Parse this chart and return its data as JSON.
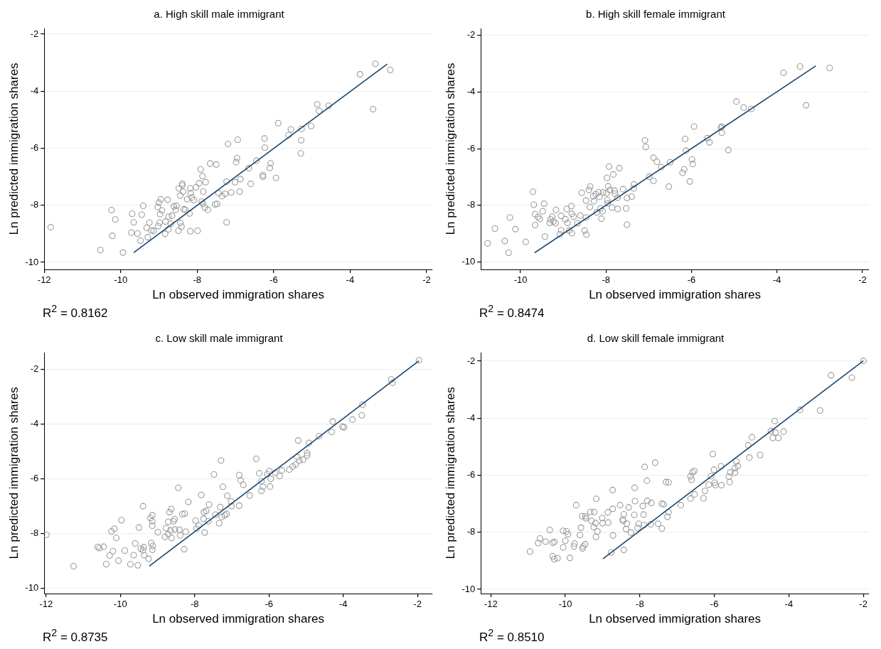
{
  "chart_data": [
    {
      "type": "scatter",
      "title": "a. High skill male immigrant",
      "xlabel": "Ln observed immigration shares",
      "ylabel": "Ln predicted immigration shares",
      "xlim": [
        -12,
        -1.85
      ],
      "ylim": [
        -10.25,
        -1.8
      ],
      "xticks": [
        -12,
        -10,
        -8,
        -6,
        -4,
        -2
      ],
      "yticks": [
        -10,
        -8,
        -6,
        -4,
        -2
      ],
      "grid": "y",
      "annotations": [
        "R$^{2}$ = 0.8162"
      ],
      "series": [
        {
          "marker": "circle",
          "color": "#999999",
          "x": [
            -11.83,
            -10.53,
            -10.24,
            -10.22,
            -10.14,
            -9.94,
            -9.72,
            -9.7,
            -9.66,
            -9.56,
            -9.48,
            -9.45,
            -9.41,
            -9.32,
            -9.29,
            -9.25,
            -9.2,
            -9.14,
            -9.02,
            -9.03,
            -9,
            -8.95,
            -8.97,
            -8.92,
            -8.98,
            -8.84,
            -8.77,
            -8.83,
            -8.75,
            -8.66,
            -8.75,
            -8.69,
            -8.61,
            -8.54,
            -8.56,
            -8.49,
            -8.48,
            -8.44,
            -8.44,
            -8.41,
            -8.39,
            -8.39,
            -8.37,
            -8.35,
            -8.31,
            -8.2,
            -8.18,
            -8.17,
            -8.26,
            -8.14,
            -8.09,
            -8.18,
            -7.99,
            -8.03,
            -7.95,
            -7.91,
            -7.86,
            -7.78,
            -7.84,
            -7.88,
            -7.85,
            -7.8,
            -7.72,
            -7.66,
            -7.5,
            -7.53,
            -7.48,
            -7.44,
            -7.35,
            -7.27,
            -7.23,
            -7.23,
            -7.19,
            -7.11,
            -7.01,
            -6.96,
            -6.98,
            -6.94,
            -6.87,
            -6.89,
            -6.65,
            -6.6,
            -6.45,
            -6.28,
            -6.28,
            -6.24,
            -6.23,
            -6.08,
            -6.1,
            -5.94,
            -5.88,
            -5.61,
            -5.55,
            -5.27,
            -5.28,
            -5.29,
            -5.02,
            -4.86,
            -4.81,
            -4.56,
            -3.74,
            -3.4,
            -3.34,
            -2.95
          ],
          "values": [
            -8.77,
            -9.57,
            -8.17,
            -9.07,
            -8.5,
            -9.66,
            -8.96,
            -8.3,
            -8.6,
            -8.99,
            -9.24,
            -8.33,
            -8.02,
            -8.79,
            -9.12,
            -8.61,
            -8.88,
            -8.9,
            -8.73,
            -8.06,
            -7.91,
            -7.79,
            -8.31,
            -8.18,
            -8.61,
            -9,
            -7.81,
            -8.57,
            -8.4,
            -8.37,
            -8.84,
            -8.65,
            -8.04,
            -8.02,
            -8.16,
            -8.89,
            -7.41,
            -7.66,
            -8.62,
            -8.75,
            -7.24,
            -7.3,
            -7.52,
            -8.14,
            -8.16,
            -8.29,
            -7.41,
            -7.58,
            -7.79,
            -7.73,
            -7.82,
            -8.91,
            -8.89,
            -7.37,
            -7.23,
            -6.74,
            -6.98,
            -7.19,
            -7.52,
            -7.87,
            -7.95,
            -8.08,
            -8.16,
            -6.54,
            -6.57,
            -7.97,
            -7.95,
            -7.58,
            -7.68,
            -7.6,
            -7.17,
            -8.6,
            -5.85,
            -7.55,
            -7.19,
            -6.35,
            -6.49,
            -5.7,
            -7.08,
            -7.52,
            -6.7,
            -7.25,
            -6.44,
            -6.94,
            -7,
            -5.66,
            -5.98,
            -6.53,
            -6.69,
            -7.04,
            -5.12,
            -5.54,
            -5.34,
            -5.32,
            -5.72,
            -6.18,
            -5.22,
            -4.46,
            -4.69,
            -4.51,
            -3.41,
            -4.63,
            -3.04,
            -3.26
          ]
        },
        {
          "type": "line",
          "color": "#1a476f",
          "x": [
            -9.66,
            -3.03
          ],
          "values": [
            -9.66,
            -3.05
          ]
        }
      ]
    },
    {
      "type": "scatter",
      "title": "b. High skill female immigrant",
      "xlabel": "Ln observed immigration shares",
      "ylabel": "Ln predicted immigration shares",
      "xlim": [
        -10.93,
        -1.85
      ],
      "ylim": [
        -10.26,
        -1.76
      ],
      "xticks": [
        -10,
        -8,
        -6,
        -4,
        -2
      ],
      "yticks": [
        -10,
        -8,
        -6,
        -4,
        -2
      ],
      "grid": "y",
      "annotations": [
        "R$^{2}$ = 0.8474"
      ],
      "series": [
        {
          "marker": "circle",
          "color": "#999999",
          "x": [
            -10.77,
            -10.6,
            -10.37,
            -10.28,
            -10.25,
            -10.12,
            -9.88,
            -9.71,
            -9.69,
            -9.66,
            -9.66,
            -9.59,
            -9.55,
            -9.48,
            -9.45,
            -9.43,
            -9.32,
            -9.3,
            -9.26,
            -9.23,
            -9.18,
            -9.17,
            -9.08,
            -9.05,
            -9.05,
            -8.95,
            -8.92,
            -8.9,
            -8.86,
            -8.81,
            -8.8,
            -8.8,
            -8.76,
            -8.67,
            -8.6,
            -8.57,
            -8.5,
            -8.47,
            -8.46,
            -8.47,
            -8.4,
            -8.37,
            -8.38,
            -8.3,
            -8.28,
            -8.24,
            -8.22,
            -8.17,
            -8.15,
            -8.13,
            -8.11,
            -8.08,
            -8.07,
            -7.99,
            -7.98,
            -7.97,
            -7.96,
            -7.95,
            -7.93,
            -7.91,
            -7.86,
            -7.83,
            -7.8,
            -7.79,
            -7.73,
            -7.73,
            -7.69,
            -7.6,
            -7.53,
            -7.51,
            -7.51,
            -7.4,
            -7.35,
            -7.35,
            -7.09,
            -7.07,
            -6.99,
            -6.89,
            -6.89,
            -6.81,
            -6.71,
            -6.53,
            -6.5,
            -6.21,
            -6.17,
            -6.15,
            -6.13,
            -6.04,
            -5.99,
            -5.97,
            -5.94,
            -5.63,
            -5.58,
            -5.31,
            -5.29,
            -5.29,
            -5.14,
            -4.95,
            -4.78,
            -4.6,
            -3.85,
            -3.46,
            -3.32,
            -2.77
          ],
          "values": [
            -9.34,
            -8.82,
            -9.26,
            -9.67,
            -8.43,
            -8.84,
            -9.29,
            -7.52,
            -7.98,
            -8.31,
            -8.7,
            -8.41,
            -8.48,
            -8.21,
            -7.94,
            -9.1,
            -8.62,
            -8.5,
            -8.4,
            -8.57,
            -8.63,
            -8.16,
            -9.02,
            -8.37,
            -8.88,
            -8.49,
            -8.13,
            -8.62,
            -8.89,
            -8.03,
            -8.3,
            -8.98,
            -8.4,
            -8.63,
            -8.36,
            -7.56,
            -8.89,
            -8.43,
            -9.03,
            -7.83,
            -7.46,
            -7.34,
            -8.06,
            -7.68,
            -7.85,
            -7.61,
            -8.25,
            -7.54,
            -7.7,
            -8.11,
            -8.47,
            -8.21,
            -7.54,
            -7.57,
            -7.03,
            -7.81,
            -7.93,
            -7.33,
            -6.63,
            -7.46,
            -8.08,
            -6.91,
            -7.48,
            -7.59,
            -7.73,
            -8.13,
            -6.69,
            -7.43,
            -8.11,
            -8.68,
            -7.74,
            -7.69,
            -7.26,
            -7.4,
            -5.71,
            -5.94,
            -6.99,
            -6.32,
            -7.14,
            -6.46,
            -6.65,
            -7.34,
            -6.48,
            -6.85,
            -6.73,
            -5.66,
            -6.07,
            -7.16,
            -6.38,
            -6.54,
            -5.22,
            -5.63,
            -5.78,
            -5.26,
            -5.22,
            -5.44,
            -6.05,
            -4.34,
            -4.55,
            -4.6,
            -3.32,
            -3.1,
            -4.47,
            -3.15
          ]
        },
        {
          "type": "line",
          "color": "#1a476f",
          "x": [
            -9.67,
            -3.09
          ],
          "values": [
            -9.67,
            -3.08
          ]
        }
      ]
    },
    {
      "type": "scatter",
      "title": "c. Low skill male immigrant",
      "xlabel": "Ln observed immigration shares",
      "ylabel": "Ln predicted immigration shares",
      "xlim": [
        -12.05,
        -1.6
      ],
      "ylim": [
        -10.2,
        -1.4
      ],
      "xticks": [
        -12,
        -10,
        -8,
        -6,
        -4,
        -2
      ],
      "yticks": [
        -10,
        -8,
        -6,
        -4,
        -2
      ],
      "grid": "y",
      "annotations": [
        "R$^{2}$ = 0.8735"
      ],
      "series": [
        {
          "marker": "circle",
          "color": "#999999",
          "x": [
            -11.99,
            -11.26,
            -10.61,
            -10.56,
            -10.45,
            -10.38,
            -10.29,
            -10.24,
            -10.2,
            -10.16,
            -10.11,
            -10.05,
            -9.97,
            -9.88,
            -9.73,
            -9.64,
            -9.6,
            -9.53,
            -9.5,
            -9.45,
            -9.39,
            -9.37,
            -9.39,
            -9.36,
            -9.24,
            -9.19,
            -9.14,
            -9.14,
            -9.14,
            -9.17,
            -9.13,
            -9.14,
            -8.99,
            -8.8,
            -8.77,
            -8.71,
            -8.71,
            -8.68,
            -8.63,
            -8.65,
            -8.62,
            -8.57,
            -8.54,
            -8.53,
            -8.44,
            -8.41,
            -8.39,
            -8.33,
            -8.27,
            -8.28,
            -8.24,
            -8.17,
            -7.97,
            -7.95,
            -7.89,
            -7.82,
            -7.75,
            -7.76,
            -7.73,
            -7.69,
            -7.63,
            -7.61,
            -7.48,
            -7.44,
            -7.34,
            -7.31,
            -7.29,
            -7.27,
            -7.24,
            -7.19,
            -7.14,
            -7.12,
            -7.02,
            -7.01,
            -6.8,
            -6.76,
            -6.8,
            -6.69,
            -6.52,
            -6.34,
            -6.26,
            -6.2,
            -6.2,
            -6.16,
            -6.04,
            -5.99,
            -5.97,
            -5.95,
            -5.83,
            -5.71,
            -5.65,
            -5.45,
            -5.36,
            -5.28,
            -5.24,
            -5.21,
            -5.18,
            -5.08,
            -4.97,
            -4.97,
            -4.92,
            -4.65,
            -4.31,
            -4.28,
            -4.02,
            -3.98,
            -3.75,
            -3.5,
            -3.48,
            -2.71,
            -2.67,
            -1.96
          ],
          "values": [
            -8.05,
            -9.2,
            -8.5,
            -8.54,
            -8.49,
            -9.13,
            -8.81,
            -7.93,
            -8.65,
            -7.83,
            -8.17,
            -9,
            -7.52,
            -8.63,
            -9.13,
            -8.8,
            -8.37,
            -9.17,
            -7.79,
            -8.56,
            -8.62,
            -8.51,
            -7.01,
            -8.8,
            -8.93,
            -7.44,
            -7.34,
            -7.56,
            -7.72,
            -8.35,
            -8.46,
            -8.6,
            -7.96,
            -8.13,
            -7.81,
            -7.58,
            -8.03,
            -7.23,
            -7.11,
            -7.9,
            -8.17,
            -7.56,
            -7.48,
            -7.86,
            -6.34,
            -7.87,
            -8.07,
            -7.3,
            -7.28,
            -8.58,
            -7.94,
            -6.85,
            -7.54,
            -7.83,
            -7.72,
            -6.6,
            -7.23,
            -7.47,
            -7.97,
            -7.18,
            -7.56,
            -6.95,
            -5.85,
            -7.32,
            -7.63,
            -7.04,
            -5.34,
            -7.4,
            -6.3,
            -7.34,
            -7.29,
            -6.63,
            -6.84,
            -7.01,
            -5.87,
            -6.07,
            -6.99,
            -6.23,
            -6.62,
            -5.28,
            -5.81,
            -6.1,
            -6.45,
            -6.3,
            -5.84,
            -5.73,
            -6.29,
            -6.01,
            -5.79,
            -5.91,
            -5.7,
            -5.67,
            -5.56,
            -5.49,
            -5.22,
            -4.61,
            -5.34,
            -5.31,
            -5.07,
            -5.16,
            -4.7,
            -4.45,
            -4.3,
            -3.92,
            -4.1,
            -4.13,
            -3.85,
            -3.69,
            -3.3,
            -2.38,
            -2.5,
            -1.68
          ]
        },
        {
          "type": "line",
          "color": "#1a476f",
          "x": [
            -9.22,
            -1.96
          ],
          "values": [
            -9.2,
            -1.7
          ]
        }
      ]
    },
    {
      "type": "scatter",
      "title": "d. Low skill female immigrant",
      "xlabel": "Ln observed immigration shares",
      "ylabel": "Ln predicted immigration shares",
      "xlim": [
        -12.27,
        -1.85
      ],
      "ylim": [
        -10.15,
        -1.7
      ],
      "xticks": [
        -12,
        -10,
        -8,
        -6,
        -4,
        -2
      ],
      "yticks": [
        -10,
        -8,
        -6,
        -4,
        -2
      ],
      "grid": "y",
      "annotations": [
        "R$^{2}$ = 0.8510"
      ],
      "series": [
        {
          "marker": "circle",
          "color": "#999999",
          "x": [
            -10.95,
            -10.73,
            -10.68,
            -10.53,
            -10.42,
            -10.34,
            -10.29,
            -10.34,
            -10.3,
            -10.21,
            -10.06,
            -10.06,
            -10,
            -9.97,
            -9.93,
            -9.88,
            -9.77,
            -9.75,
            -9.71,
            -9.61,
            -9.58,
            -9.54,
            -9.52,
            -9.47,
            -9.55,
            -9.46,
            -9.45,
            -9.33,
            -9.23,
            -9.3,
            -9.19,
            -9.24,
            -9.14,
            -9.18,
            -9.17,
            -9.01,
            -9,
            -8.86,
            -8.85,
            -8.73,
            -8.73,
            -8.72,
            -8.77,
            -8.53,
            -8.43,
            -8.43,
            -8.46,
            -8.45,
            -8.35,
            -8.37,
            -8.3,
            -8.24,
            -8.15,
            -8.13,
            -8.14,
            -8.06,
            -8.03,
            -7.92,
            -7.9,
            -7.89,
            -7.87,
            -7.81,
            -7.8,
            -7.69,
            -7.71,
            -7.59,
            -7.51,
            -7.41,
            -7.41,
            -7.36,
            -7.3,
            -7.23,
            -7.26,
            -7.23,
            -6.9,
            -6.64,
            -6.64,
            -6.61,
            -6.59,
            -6.54,
            -6.53,
            -6.29,
            -6.25,
            -6.15,
            -6.09,
            -6.04,
            -6.01,
            -5.99,
            -5.97,
            -5.82,
            -5.81,
            -5.61,
            -5.59,
            -5.57,
            -5.45,
            -5.45,
            -5.41,
            -5.37,
            -5.09,
            -5.06,
            -4.99,
            -4.77,
            -4.48,
            -4.43,
            -4.38,
            -4.36,
            -4.28,
            -4.14,
            -3.7,
            -3.16,
            -2.87,
            -2.31,
            -2
          ],
          "values": [
            -8.68,
            -8.38,
            -8.22,
            -8.33,
            -7.92,
            -8.37,
            -8.34,
            -8.84,
            -8.94,
            -8.91,
            -7.95,
            -8.53,
            -8.3,
            -7.97,
            -8.07,
            -8.9,
            -8.5,
            -8.4,
            -7.05,
            -8.1,
            -7.84,
            -8.57,
            -8.5,
            -8.42,
            -7.44,
            -7.44,
            -7.51,
            -7.29,
            -7.29,
            -7.6,
            -7.68,
            -7.82,
            -7.97,
            -8.16,
            -6.83,
            -7.5,
            -7.68,
            -7.3,
            -7.66,
            -7.18,
            -6.52,
            -8.11,
            -8.71,
            -7.05,
            -7.37,
            -8.62,
            -7.55,
            -7.6,
            -7.7,
            -7.89,
            -7.13,
            -8.01,
            -7.39,
            -6.91,
            -6.44,
            -7.85,
            -7.7,
            -7.08,
            -7.38,
            -7.75,
            -5.71,
            -6.19,
            -6.9,
            -6.97,
            -7.72,
            -5.56,
            -7.7,
            -7.87,
            -7,
            -7.02,
            -6.24,
            -6.25,
            -7.46,
            -7.29,
            -7.05,
            -6.04,
            -6.82,
            -6.16,
            -5.9,
            -5.85,
            -6.67,
            -6.81,
            -6.55,
            -6.33,
            -6.03,
            -5.26,
            -5.81,
            -6.26,
            -6.35,
            -5.69,
            -6.35,
            -6.05,
            -6.24,
            -5.9,
            -5.91,
            -5.75,
            -5.52,
            -5.68,
            -4.95,
            -5.38,
            -4.67,
            -5.29,
            -4.45,
            -4.69,
            -4.1,
            -4.5,
            -4.69,
            -4.47,
            -3.71,
            -3.73,
            -2.5,
            -2.58,
            -1.99
          ]
        },
        {
          "type": "line",
          "color": "#1a476f",
          "x": [
            -8.99,
            -2
          ],
          "values": [
            -8.93,
            -1.99
          ]
        }
      ]
    }
  ]
}
